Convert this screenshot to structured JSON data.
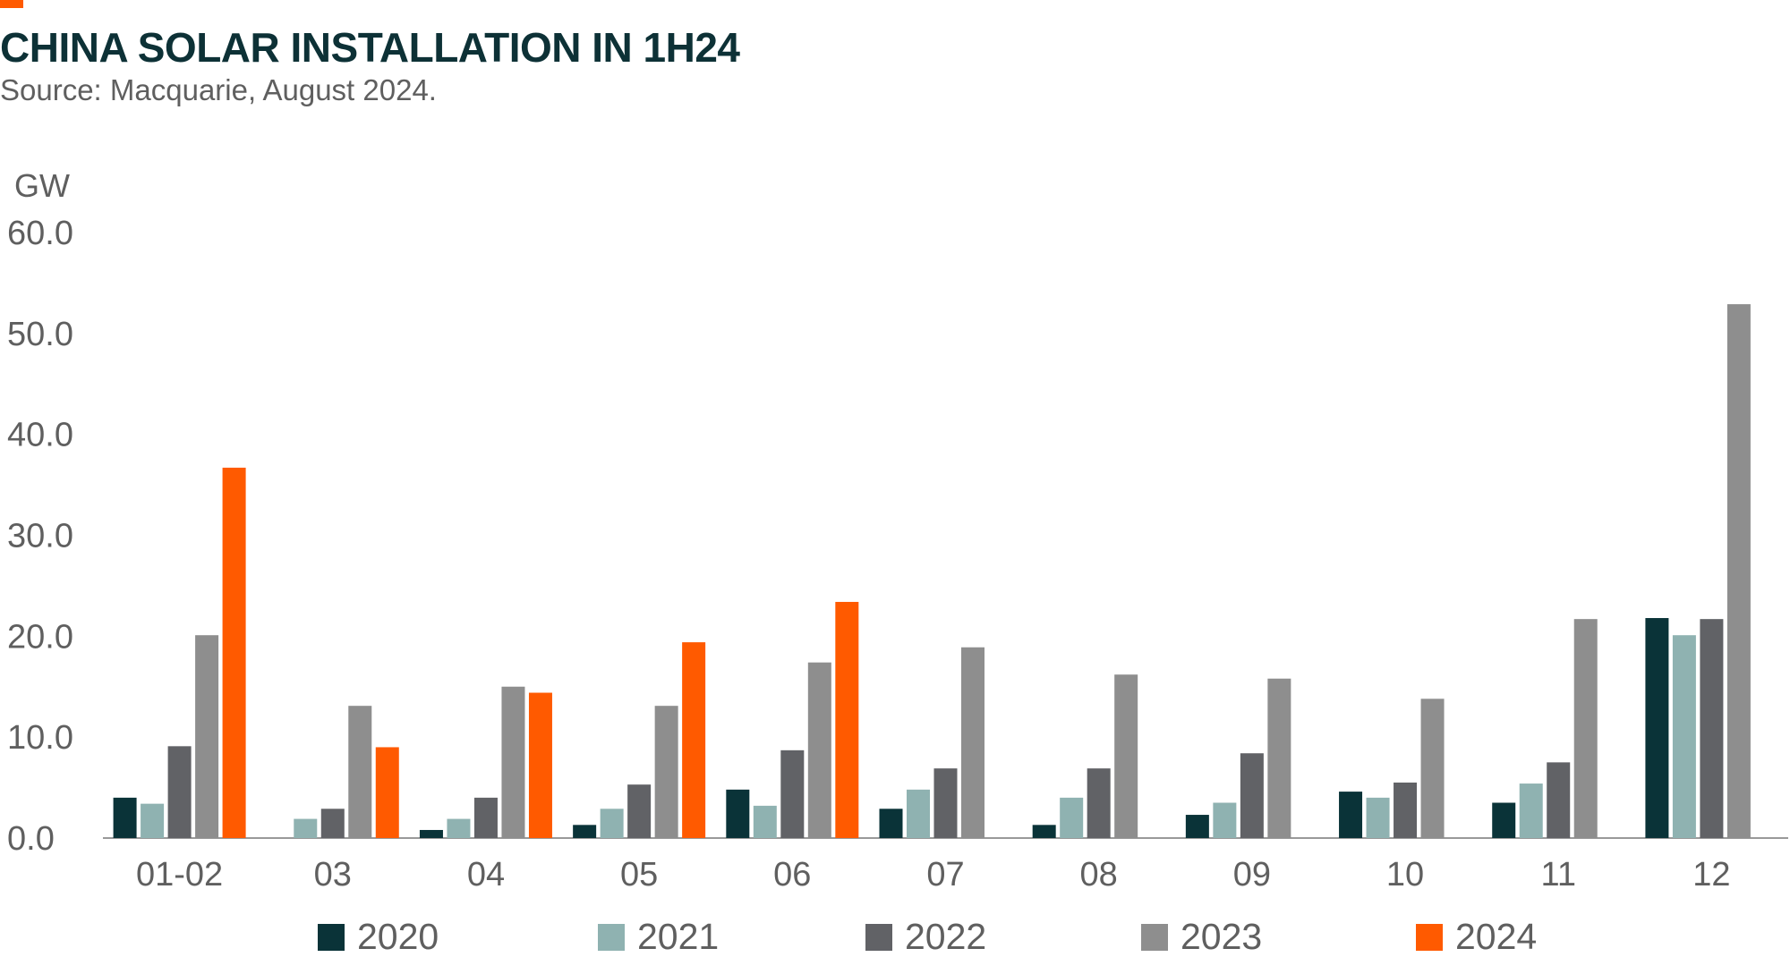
{
  "header": {
    "title": "CHINA SOLAR INSTALLATION IN 1H24",
    "subtitle": "Source: Macquarie, August 2024."
  },
  "colors": {
    "accent": "#ff5a00",
    "title": "#0d3136",
    "text": "#5f5f5f",
    "axis": "#999999"
  },
  "chart_data": {
    "type": "bar",
    "title": "CHINA SOLAR INSTALLATION IN 1H24",
    "ylabel": "GW",
    "xlabel": "",
    "ylim": [
      0,
      60
    ],
    "yticks": [
      "0.0",
      "10.0",
      "20.0",
      "30.0",
      "40.0",
      "50.0",
      "60.0"
    ],
    "grid": false,
    "legend_position": "bottom",
    "categories": [
      "01-02",
      "03",
      "04",
      "05",
      "06",
      "07",
      "08",
      "09",
      "10",
      "11",
      "12"
    ],
    "series": [
      {
        "name": "2020",
        "color": "#0a3338",
        "values": [
          4.0,
          0,
          0.8,
          1.3,
          4.8,
          2.9,
          1.3,
          2.3,
          4.6,
          3.5,
          21.8
        ]
      },
      {
        "name": "2021",
        "color": "#8fb2b1",
        "values": [
          3.4,
          1.9,
          1.9,
          2.9,
          3.2,
          4.8,
          4.0,
          3.5,
          4.0,
          5.4,
          20.1
        ]
      },
      {
        "name": "2022",
        "color": "#616266",
        "values": [
          9.1,
          2.9,
          4.0,
          5.3,
          8.7,
          6.9,
          6.9,
          8.4,
          5.5,
          7.5,
          21.7
        ]
      },
      {
        "name": "2023",
        "color": "#8e8e8e",
        "values": [
          20.1,
          13.1,
          15.0,
          13.1,
          17.4,
          18.9,
          16.2,
          15.8,
          13.8,
          21.7,
          52.9
        ]
      },
      {
        "name": "2024",
        "color": "#ff5a00",
        "values": [
          36.7,
          9.0,
          14.4,
          19.4,
          23.4,
          null,
          null,
          null,
          null,
          null,
          null
        ]
      }
    ]
  }
}
